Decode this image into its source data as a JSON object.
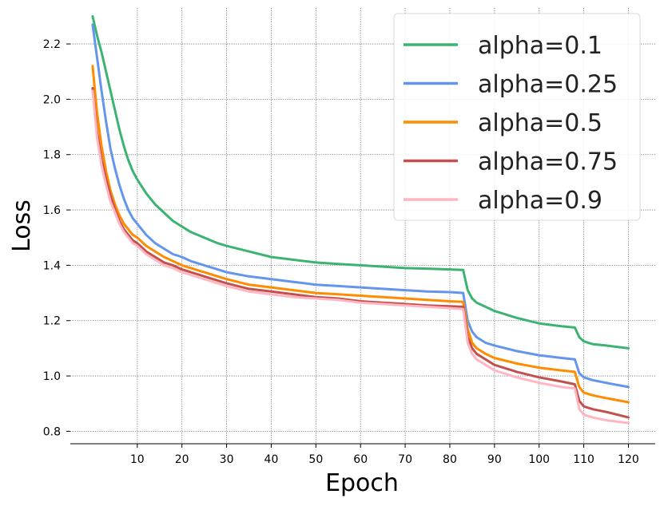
{
  "chart_data": {
    "type": "line",
    "title": "",
    "xlabel": "Epoch",
    "ylabel": "Loss",
    "xlim": [
      -5,
      126
    ],
    "ylim": [
      0.755,
      2.33
    ],
    "xticks": [
      10,
      20,
      30,
      40,
      50,
      60,
      70,
      80,
      90,
      100,
      110,
      120
    ],
    "yticks": [
      0.8,
      1.0,
      1.2,
      1.4,
      1.6,
      1.8,
      2.0,
      2.2
    ],
    "ytick_labels": [
      "0.8",
      "1.0",
      "1.2",
      "1.4",
      "1.6",
      "1.8",
      "2.0",
      "2.2"
    ],
    "grid": true,
    "legend_position": "upper-right",
    "series": [
      {
        "name": "alpha=0.1",
        "color": "#3cb371",
        "x": [
          0,
          1,
          2,
          3,
          4,
          5,
          6,
          7,
          8,
          9,
          10,
          12,
          14,
          16,
          18,
          20,
          22,
          25,
          28,
          30,
          35,
          40,
          45,
          50,
          55,
          60,
          65,
          70,
          75,
          80,
          83,
          84,
          85,
          86,
          88,
          90,
          95,
          100,
          105,
          108,
          109,
          110,
          112,
          115,
          120
        ],
        "y": [
          2.3,
          2.23,
          2.17,
          2.1,
          2.03,
          1.96,
          1.89,
          1.83,
          1.78,
          1.74,
          1.71,
          1.66,
          1.62,
          1.59,
          1.56,
          1.54,
          1.52,
          1.5,
          1.48,
          1.47,
          1.45,
          1.43,
          1.42,
          1.41,
          1.405,
          1.4,
          1.395,
          1.39,
          1.388,
          1.385,
          1.383,
          1.31,
          1.28,
          1.265,
          1.25,
          1.235,
          1.21,
          1.19,
          1.18,
          1.175,
          1.14,
          1.125,
          1.115,
          1.11,
          1.1
        ]
      },
      {
        "name": "alpha=0.25",
        "color": "#6495ed",
        "x": [
          0,
          1,
          2,
          3,
          4,
          5,
          6,
          7,
          8,
          9,
          10,
          12,
          14,
          16,
          18,
          20,
          22,
          25,
          28,
          30,
          35,
          40,
          45,
          50,
          55,
          60,
          65,
          70,
          75,
          80,
          83,
          84,
          85,
          86,
          88,
          90,
          95,
          100,
          105,
          108,
          109,
          110,
          112,
          115,
          120
        ],
        "y": [
          2.27,
          2.15,
          2.03,
          1.92,
          1.82,
          1.75,
          1.69,
          1.64,
          1.6,
          1.57,
          1.55,
          1.51,
          1.48,
          1.46,
          1.44,
          1.43,
          1.415,
          1.4,
          1.385,
          1.375,
          1.36,
          1.35,
          1.34,
          1.33,
          1.325,
          1.32,
          1.315,
          1.31,
          1.305,
          1.303,
          1.3,
          1.2,
          1.16,
          1.14,
          1.12,
          1.11,
          1.09,
          1.075,
          1.065,
          1.06,
          1.01,
          0.995,
          0.985,
          0.975,
          0.96
        ]
      },
      {
        "name": "alpha=0.5",
        "color": "#ff8c00",
        "x": [
          0,
          1,
          2,
          3,
          4,
          5,
          6,
          7,
          8,
          9,
          10,
          12,
          14,
          16,
          18,
          20,
          22,
          25,
          28,
          30,
          35,
          40,
          45,
          50,
          55,
          60,
          65,
          70,
          75,
          80,
          83,
          84,
          85,
          86,
          88,
          90,
          95,
          100,
          105,
          108,
          109,
          110,
          112,
          115,
          120
        ],
        "y": [
          2.12,
          1.95,
          1.83,
          1.74,
          1.67,
          1.62,
          1.58,
          1.55,
          1.53,
          1.51,
          1.5,
          1.47,
          1.45,
          1.43,
          1.415,
          1.4,
          1.39,
          1.375,
          1.36,
          1.35,
          1.33,
          1.32,
          1.31,
          1.3,
          1.295,
          1.29,
          1.285,
          1.28,
          1.275,
          1.27,
          1.268,
          1.17,
          1.12,
          1.1,
          1.08,
          1.065,
          1.045,
          1.03,
          1.02,
          1.015,
          0.96,
          0.94,
          0.93,
          0.92,
          0.905
        ]
      },
      {
        "name": "alpha=0.75",
        "color": "#c1504f",
        "x": [
          0,
          1,
          2,
          3,
          4,
          5,
          6,
          7,
          8,
          9,
          10,
          12,
          14,
          16,
          18,
          20,
          22,
          25,
          28,
          30,
          35,
          40,
          45,
          50,
          55,
          60,
          65,
          70,
          75,
          80,
          83,
          84,
          85,
          86,
          88,
          90,
          95,
          100,
          105,
          108,
          109,
          110,
          112,
          115,
          120
        ],
        "y": [
          2.04,
          1.88,
          1.78,
          1.71,
          1.65,
          1.6,
          1.56,
          1.53,
          1.51,
          1.49,
          1.48,
          1.45,
          1.43,
          1.41,
          1.4,
          1.385,
          1.375,
          1.36,
          1.345,
          1.335,
          1.315,
          1.305,
          1.295,
          1.285,
          1.28,
          1.27,
          1.265,
          1.26,
          1.255,
          1.252,
          1.25,
          1.14,
          1.1,
          1.08,
          1.06,
          1.04,
          1.015,
          0.995,
          0.98,
          0.97,
          0.91,
          0.89,
          0.88,
          0.87,
          0.85
        ]
      },
      {
        "name": "alpha=0.9",
        "color": "#ffb6c1",
        "x": [
          0,
          1,
          2,
          3,
          4,
          5,
          6,
          7,
          8,
          9,
          10,
          12,
          14,
          16,
          18,
          20,
          22,
          25,
          28,
          30,
          35,
          40,
          45,
          50,
          55,
          60,
          65,
          70,
          75,
          80,
          83,
          84,
          85,
          86,
          88,
          90,
          95,
          100,
          105,
          108,
          109,
          110,
          112,
          115,
          120
        ],
        "y": [
          2.03,
          1.86,
          1.76,
          1.69,
          1.63,
          1.59,
          1.55,
          1.52,
          1.5,
          1.48,
          1.47,
          1.44,
          1.42,
          1.4,
          1.39,
          1.375,
          1.365,
          1.35,
          1.335,
          1.325,
          1.305,
          1.295,
          1.285,
          1.28,
          1.275,
          1.265,
          1.26,
          1.255,
          1.25,
          1.245,
          1.242,
          1.12,
          1.08,
          1.06,
          1.04,
          1.02,
          0.995,
          0.975,
          0.96,
          0.955,
          0.88,
          0.86,
          0.85,
          0.84,
          0.83
        ]
      }
    ]
  }
}
